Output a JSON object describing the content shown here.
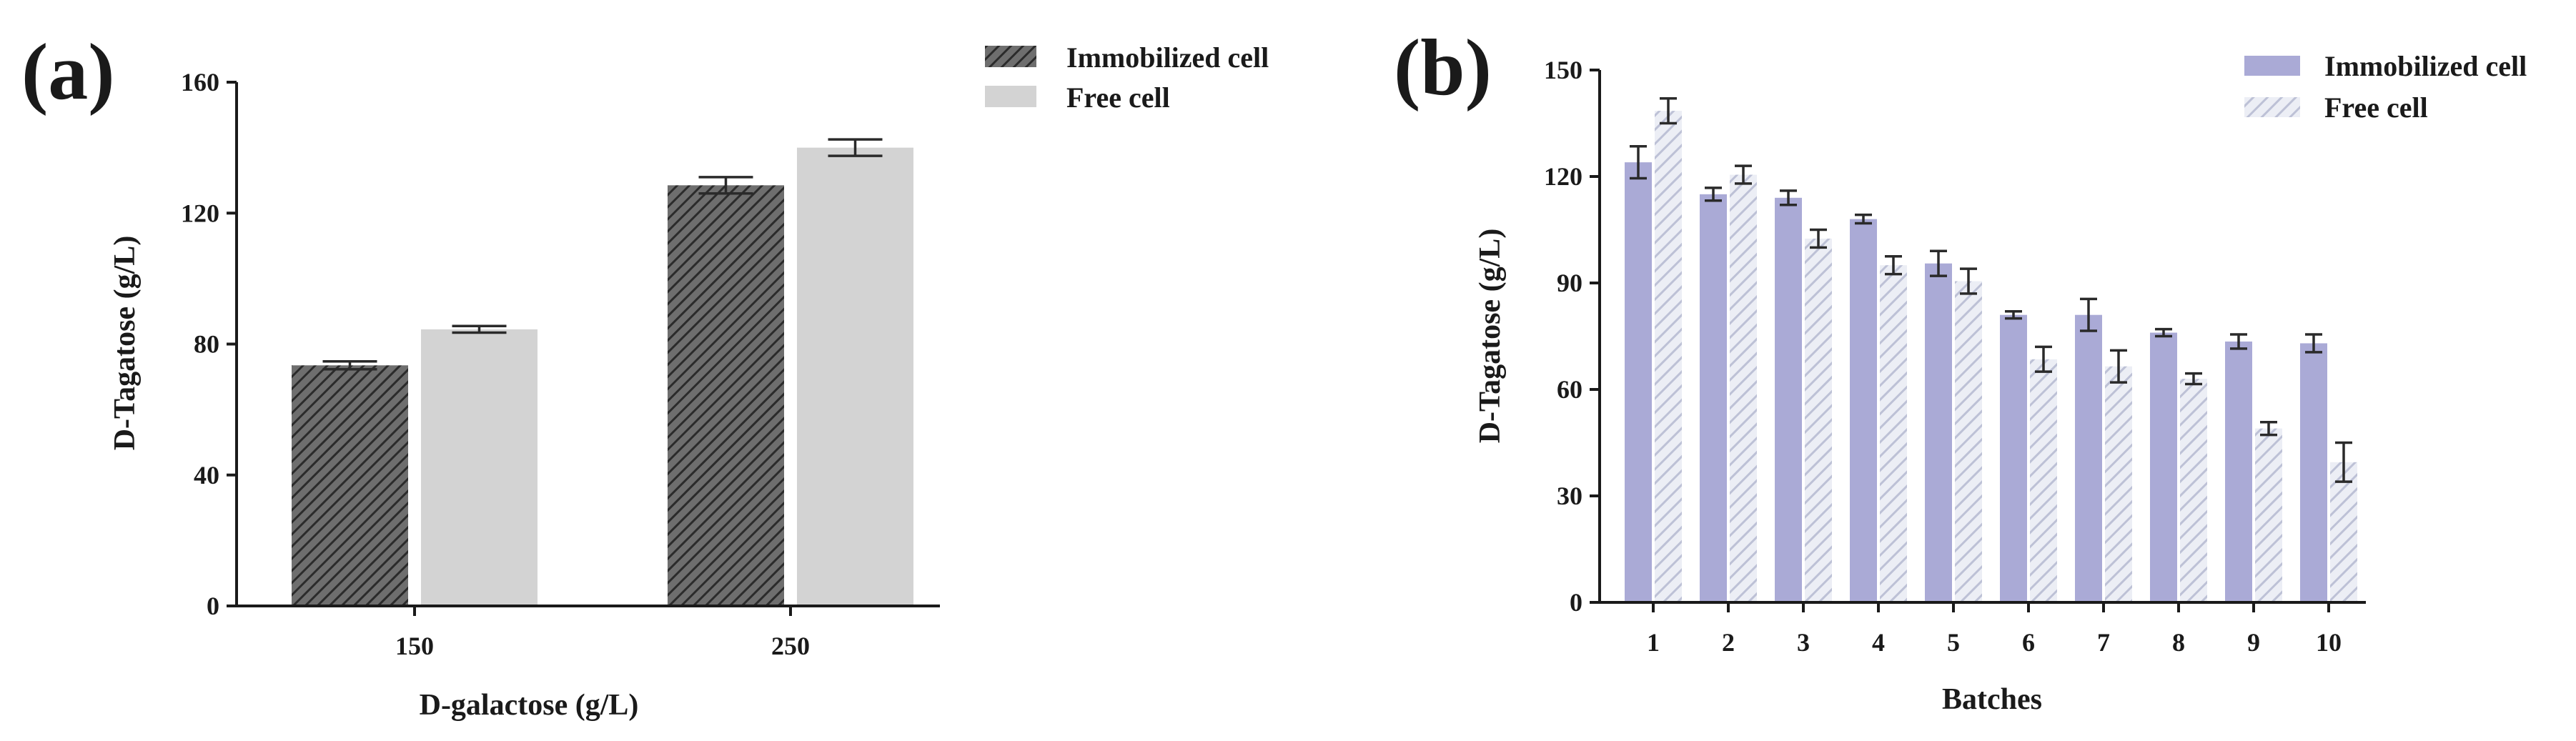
{
  "chart_data": [
    {
      "panel_label": "(a)",
      "type": "bar",
      "title": "",
      "xlabel": "D-galactose (g/L)",
      "ylabel": "D-Tagatose (g/L)",
      "categories": [
        "150",
        "250"
      ],
      "ylim": [
        0,
        160
      ],
      "yticks": [
        0,
        40,
        80,
        120,
        160
      ],
      "grid": false,
      "legend_position": "top-right",
      "series": [
        {
          "name": "Immobilized cell",
          "values": [
            73.5,
            128.5
          ],
          "errors": [
            1.2,
            2.5
          ],
          "color": "#5a5a5a",
          "pattern": "dark-hatch"
        },
        {
          "name": "Free cell",
          "values": [
            84.5,
            140.0
          ],
          "errors": [
            1.0,
            2.5
          ],
          "color": "#d3d3d3",
          "pattern": "solid"
        }
      ]
    },
    {
      "panel_label": "(b)",
      "type": "bar",
      "title": "",
      "xlabel": "Batches",
      "ylabel": "D-Tagatose (g/L)",
      "categories": [
        "1",
        "2",
        "3",
        "4",
        "5",
        "6",
        "7",
        "8",
        "9",
        "10"
      ],
      "ylim": [
        0,
        150
      ],
      "yticks": [
        0,
        30,
        60,
        90,
        120,
        150
      ],
      "grid": false,
      "legend_position": "top-right",
      "series": [
        {
          "name": "Immobilized cell",
          "values": [
            124,
            115,
            114,
            108,
            95.5,
            81,
            81,
            76,
            73.5,
            73
          ],
          "errors": [
            4.5,
            1.8,
            2.0,
            1.2,
            3.5,
            1.0,
            4.5,
            1.0,
            2.0,
            2.5
          ],
          "color": "#aaaad6",
          "pattern": "solid"
        },
        {
          "name": "Free cell",
          "values": [
            138.5,
            120.5,
            102.5,
            95,
            90.5,
            68.5,
            66.5,
            63,
            49,
            39.5
          ],
          "errors": [
            3.5,
            2.5,
            2.5,
            2.5,
            3.5,
            3.5,
            4.5,
            1.5,
            1.8,
            5.5
          ],
          "color": "#c8cce0",
          "pattern": "light-hatch"
        }
      ]
    }
  ]
}
